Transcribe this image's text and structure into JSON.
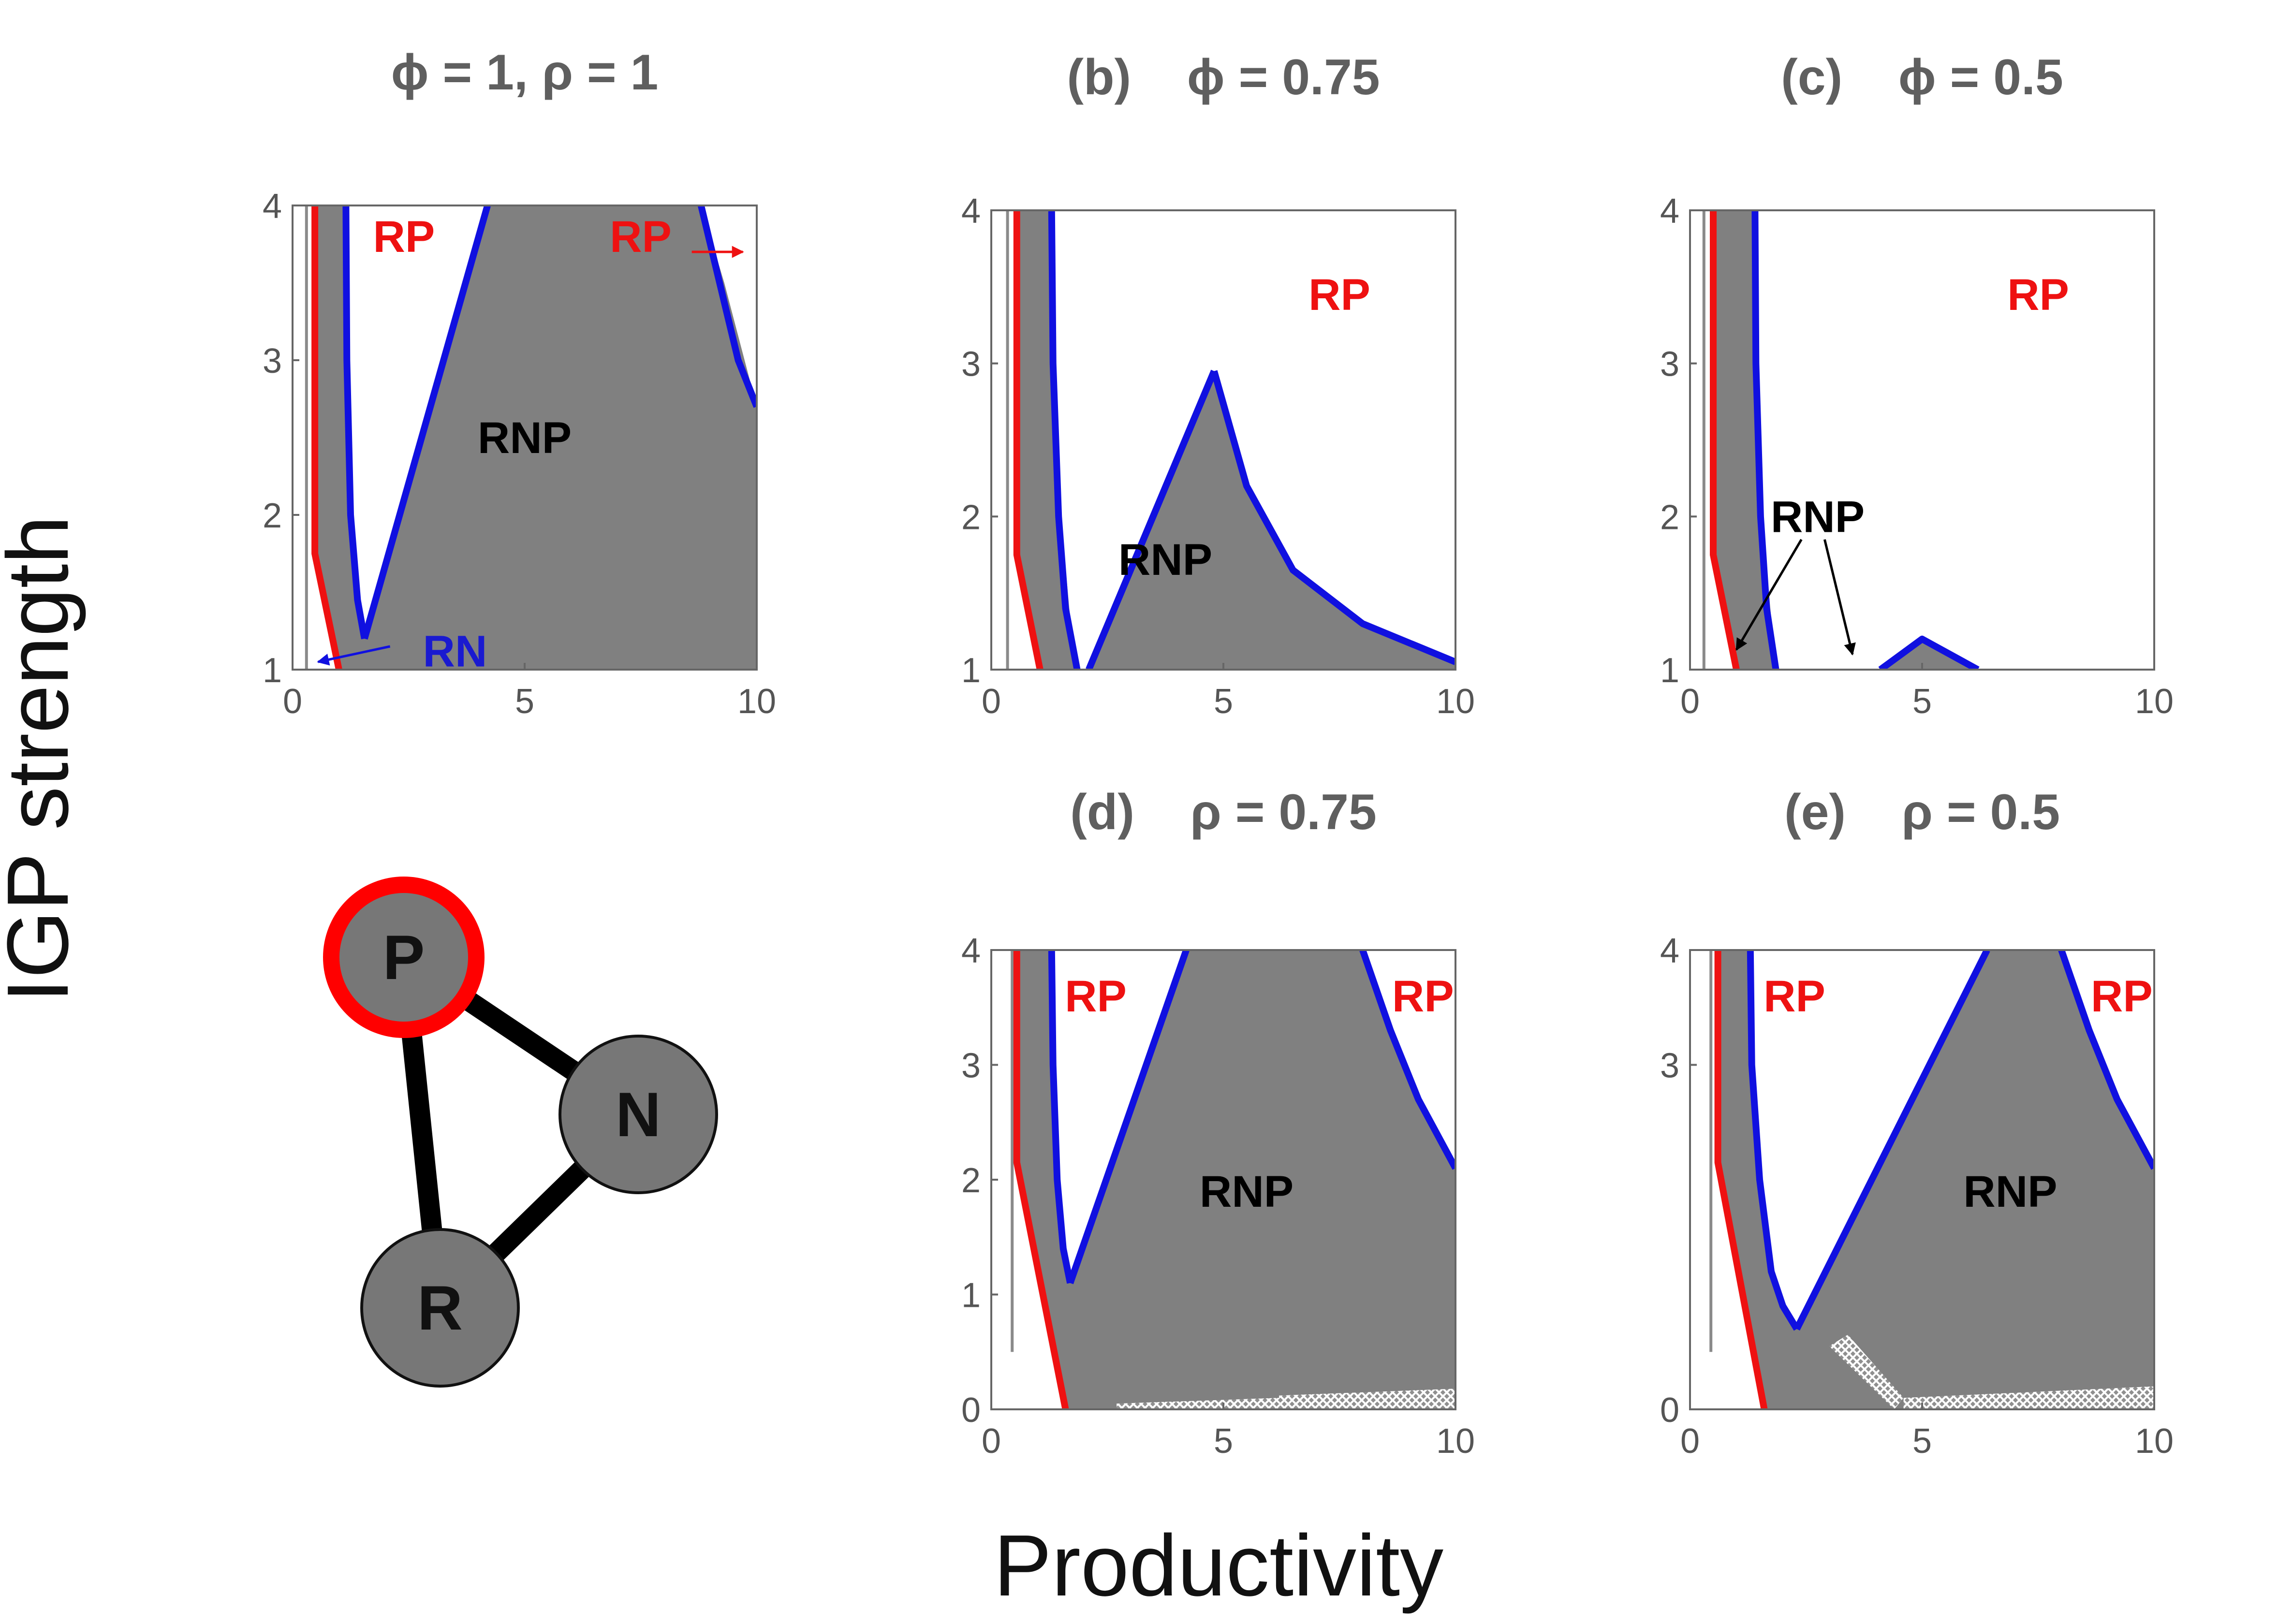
{
  "figure": {
    "ylabel": "IGP strength",
    "xlabel": "Productivity"
  },
  "colors": {
    "region_fill": "#808080",
    "blue_boundary": "#1010e0",
    "red_boundary": "#ee1111",
    "vline": "#8a8a8a",
    "rp_label": "#ee1111",
    "rn_label": "#1a1ad0",
    "rnp_label": "#000000",
    "node_fill": "#777777",
    "node_highlight": "#ff0000"
  },
  "chart_data": [
    {
      "id": "a",
      "type": "area",
      "title": "ϕ = 1, ρ = 1",
      "xlim": [
        0,
        10
      ],
      "ylim": [
        1,
        4
      ],
      "xticks": [
        "0",
        "5",
        "10"
      ],
      "yticks": [
        "1",
        "2",
        "3",
        "4"
      ],
      "gray_region": [
        [
          0.75,
          4
        ],
        [
          1.1,
          4
        ],
        [
          1.15,
          3
        ],
        [
          1.25,
          2
        ],
        [
          1.55,
          1.2
        ],
        [
          4.2,
          4
        ],
        [
          8.8,
          4
        ],
        [
          9.3,
          3.5
        ],
        [
          10,
          2.7
        ],
        [
          10,
          1
        ],
        [
          1,
          1
        ],
        [
          0.75,
          1.3
        ],
        [
          0.48,
          1.75
        ],
        [
          0.48,
          4
        ]
      ],
      "blue_curves": [
        [
          [
            1.15,
            4
          ],
          [
            1.17,
            3
          ],
          [
            1.25,
            2
          ],
          [
            1.4,
            1.45
          ],
          [
            1.55,
            1.2
          ]
        ],
        [
          [
            1.55,
            1.2
          ],
          [
            4.2,
            4
          ]
        ],
        [
          [
            8.8,
            4
          ],
          [
            9.2,
            3.5
          ],
          [
            9.6,
            3.0
          ],
          [
            10,
            2.7
          ]
        ]
      ],
      "red_curves": [
        [
          [
            0.48,
            4
          ],
          [
            0.48,
            1.75
          ],
          [
            1.0,
            1.0
          ]
        ]
      ],
      "vline_x": 0.3,
      "labels": [
        {
          "text": "RP",
          "x": 2.4,
          "y": 3.8,
          "color": "red"
        },
        {
          "text": "RP",
          "x": 7.5,
          "y": 3.8,
          "color": "red"
        },
        {
          "text": "RNP",
          "x": 5.0,
          "y": 2.5,
          "color": "black"
        },
        {
          "text": "RN",
          "x": 3.5,
          "y": 1.12,
          "color": "blue"
        }
      ],
      "arrows": [
        {
          "from": [
            2.1,
            1.15
          ],
          "to": [
            0.55,
            1.05
          ],
          "color": "blue"
        },
        {
          "from": [
            8.6,
            3.7
          ],
          "to": [
            9.7,
            3.7
          ],
          "color": "red"
        }
      ]
    },
    {
      "id": "b",
      "type": "area",
      "title": "(b)    ϕ = 0.75",
      "xlim": [
        0,
        10
      ],
      "ylim": [
        1,
        4
      ],
      "xticks": [
        "0",
        "5",
        "10"
      ],
      "yticks": [
        "1",
        "2",
        "3",
        "4"
      ],
      "gray_region": [
        [
          0.55,
          4
        ],
        [
          1.3,
          4
        ],
        [
          1.35,
          3
        ],
        [
          1.5,
          2
        ],
        [
          1.8,
          1
        ],
        [
          2.1,
          1
        ],
        [
          4.8,
          2.95
        ],
        [
          5.5,
          2.2
        ],
        [
          6.5,
          1.65
        ],
        [
          8,
          1.3
        ],
        [
          10,
          1.05
        ],
        [
          10,
          1
        ],
        [
          1.05,
          1
        ],
        [
          0.55,
          1.75
        ]
      ],
      "blue_curves": [
        [
          [
            1.3,
            4
          ],
          [
            1.33,
            3
          ],
          [
            1.45,
            2
          ],
          [
            1.6,
            1.4
          ],
          [
            1.85,
            1.0
          ]
        ],
        [
          [
            2.1,
            1.0
          ],
          [
            4.8,
            2.95
          ]
        ],
        [
          [
            4.8,
            2.95
          ],
          [
            5.5,
            2.2
          ],
          [
            6.5,
            1.65
          ],
          [
            8,
            1.3
          ],
          [
            10,
            1.05
          ]
        ]
      ],
      "red_curves": [
        [
          [
            0.55,
            4
          ],
          [
            0.55,
            1.75
          ],
          [
            1.05,
            1.0
          ]
        ]
      ],
      "vline_x": 0.35,
      "labels": [
        {
          "text": "RP",
          "x": 7.5,
          "y": 3.45,
          "color": "red"
        },
        {
          "text": "RNP",
          "x": 3.75,
          "y": 1.72,
          "color": "black"
        }
      ],
      "arrows": []
    },
    {
      "id": "c",
      "type": "area",
      "title": "(c)    ϕ = 0.5",
      "xlim": [
        0,
        10
      ],
      "ylim": [
        1,
        4
      ],
      "xticks": [
        "0",
        "5",
        "10"
      ],
      "yticks": [
        "1",
        "2",
        "3",
        "4"
      ],
      "gray_region": [
        [
          0.5,
          4
        ],
        [
          1.4,
          4
        ],
        [
          1.45,
          3
        ],
        [
          1.55,
          2
        ],
        [
          1.85,
          1
        ],
        [
          1.0,
          1
        ],
        [
          0.5,
          1.75
        ]
      ],
      "gray_region_2": [
        [
          4.1,
          1
        ],
        [
          5.0,
          1.2
        ],
        [
          6.2,
          1
        ]
      ],
      "blue_curves": [
        [
          [
            1.4,
            4
          ],
          [
            1.42,
            3
          ],
          [
            1.52,
            2
          ],
          [
            1.65,
            1.4
          ],
          [
            1.85,
            1.0
          ]
        ],
        [
          [
            4.1,
            1.0
          ],
          [
            5.0,
            1.2
          ],
          [
            6.2,
            1.0
          ]
        ]
      ],
      "red_curves": [
        [
          [
            0.5,
            4
          ],
          [
            0.5,
            1.75
          ],
          [
            1.0,
            1.0
          ]
        ]
      ],
      "vline_x": 0.3,
      "labels": [
        {
          "text": "RP",
          "x": 7.5,
          "y": 3.45,
          "color": "red"
        },
        {
          "text": "RNP",
          "x": 2.75,
          "y": 2.0,
          "color": "black"
        }
      ],
      "arrows": [
        {
          "from": [
            2.4,
            1.85
          ],
          "to": [
            1.0,
            1.13
          ],
          "color": "black"
        },
        {
          "from": [
            2.9,
            1.85
          ],
          "to": [
            3.5,
            1.1
          ],
          "color": "black"
        }
      ]
    },
    {
      "id": "d",
      "type": "area",
      "title": "(d)    ρ = 0.75",
      "xlim": [
        0,
        10
      ],
      "ylim": [
        0,
        4
      ],
      "xticks": [
        "0",
        "5",
        "10"
      ],
      "yticks": [
        "0",
        "1",
        "2",
        "3",
        "4"
      ],
      "gray_region": [
        [
          0.55,
          4
        ],
        [
          1.3,
          4
        ],
        [
          1.35,
          3
        ],
        [
          1.45,
          2
        ],
        [
          1.7,
          1.1
        ],
        [
          4.2,
          4
        ],
        [
          8.0,
          4
        ],
        [
          8.5,
          3.5
        ],
        [
          9.2,
          2.7
        ],
        [
          10,
          2.1
        ],
        [
          10,
          0
        ],
        [
          1.6,
          0
        ],
        [
          0.55,
          2.15
        ]
      ],
      "blue_curves": [
        [
          [
            1.3,
            4
          ],
          [
            1.33,
            3
          ],
          [
            1.42,
            2
          ],
          [
            1.55,
            1.4
          ],
          [
            1.7,
            1.1
          ]
        ],
        [
          [
            1.7,
            1.1
          ],
          [
            4.2,
            4
          ]
        ],
        [
          [
            8.0,
            4
          ],
          [
            8.6,
            3.3
          ],
          [
            9.2,
            2.7
          ],
          [
            10,
            2.1
          ]
        ]
      ],
      "red_curves": [
        [
          [
            0.55,
            4
          ],
          [
            0.55,
            2.15
          ],
          [
            1.6,
            0
          ]
        ]
      ],
      "vline_x": 0.45,
      "vline_ybottom": 0.5,
      "hatch": [
        [
          2.7,
          0
        ],
        [
          6.2,
          0
        ],
        [
          6.2,
          0.1
        ],
        [
          2.7,
          0.05
        ]
      ],
      "hatch_2": [
        [
          6.2,
          0
        ],
        [
          10,
          0
        ],
        [
          10,
          0.18
        ],
        [
          6.2,
          0.12
        ]
      ],
      "labels": [
        {
          "text": "RP",
          "x": 2.25,
          "y": 3.6,
          "color": "red"
        },
        {
          "text": "RP",
          "x": 9.3,
          "y": 3.6,
          "color": "red"
        },
        {
          "text": "RNP",
          "x": 5.5,
          "y": 1.9,
          "color": "black"
        }
      ],
      "arrows": []
    },
    {
      "id": "e",
      "type": "area",
      "title": "(e)    ρ = 0.5",
      "xlim": [
        0,
        10
      ],
      "ylim": [
        0,
        4
      ],
      "xticks": [
        "0",
        "5",
        "10"
      ],
      "yticks": [
        "0",
        "3",
        "4"
      ],
      "gray_region": [
        [
          0.6,
          4
        ],
        [
          1.3,
          4
        ],
        [
          1.35,
          3
        ],
        [
          1.5,
          2
        ],
        [
          1.75,
          1.2
        ],
        [
          2.3,
          0.7
        ],
        [
          6.4,
          4
        ],
        [
          8.0,
          4
        ],
        [
          8.5,
          3.5
        ],
        [
          9.2,
          2.7
        ],
        [
          10,
          2.1
        ],
        [
          10,
          0
        ],
        [
          1.6,
          0
        ],
        [
          0.6,
          2.15
        ]
      ],
      "blue_curves": [
        [
          [
            1.3,
            4
          ],
          [
            1.33,
            3
          ],
          [
            1.5,
            2
          ],
          [
            1.75,
            1.2
          ],
          [
            2.0,
            0.9
          ],
          [
            2.3,
            0.7
          ]
        ],
        [
          [
            2.3,
            0.7
          ],
          [
            6.4,
            4
          ]
        ],
        [
          [
            8.0,
            4
          ],
          [
            8.6,
            3.3
          ],
          [
            9.2,
            2.7
          ],
          [
            10,
            2.1
          ]
        ]
      ],
      "red_curves": [
        [
          [
            0.6,
            4
          ],
          [
            0.6,
            2.15
          ],
          [
            1.6,
            0
          ]
        ]
      ],
      "vline_x": 0.45,
      "vline_ybottom": 0.5,
      "hatch": [
        [
          3.0,
          0.55
        ],
        [
          3.4,
          0.65
        ],
        [
          4.6,
          0.1
        ],
        [
          4.4,
          0
        ]
      ],
      "hatch_2": [
        [
          4.6,
          0
        ],
        [
          10,
          0
        ],
        [
          10,
          0.2
        ],
        [
          4.6,
          0.1
        ]
      ],
      "labels": [
        {
          "text": "RP",
          "x": 2.25,
          "y": 3.6,
          "color": "red"
        },
        {
          "text": "RP",
          "x": 9.3,
          "y": 3.6,
          "color": "red"
        },
        {
          "text": "RNP",
          "x": 6.9,
          "y": 1.9,
          "color": "black"
        }
      ],
      "arrows": []
    }
  ],
  "network": {
    "nodes": [
      {
        "id": "P",
        "label": "P",
        "highlight": true
      },
      {
        "id": "N",
        "label": "N",
        "highlight": false
      },
      {
        "id": "R",
        "label": "R",
        "highlight": false
      }
    ],
    "edges": [
      [
        "P",
        "N"
      ],
      [
        "P",
        "R"
      ],
      [
        "N",
        "R"
      ]
    ]
  }
}
